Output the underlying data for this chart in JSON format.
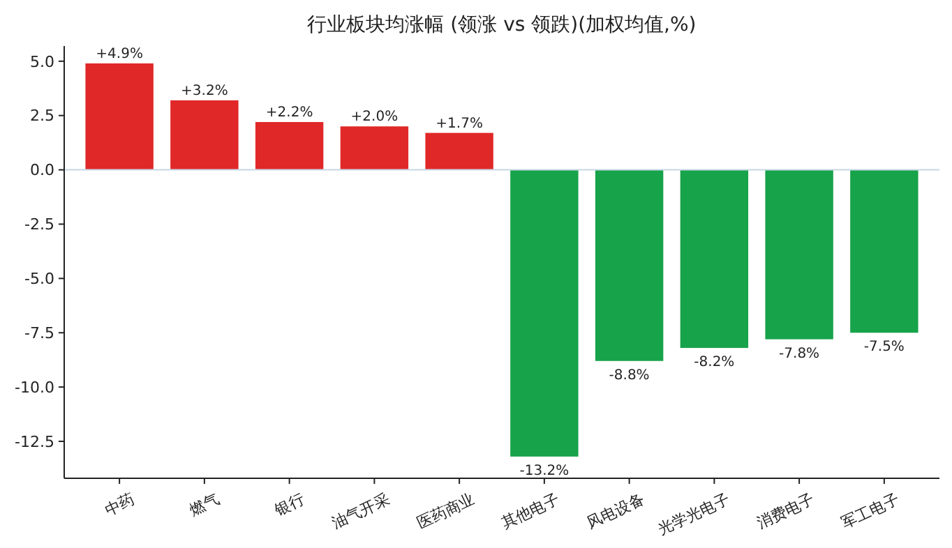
{
  "chart_data": {
    "type": "bar",
    "title": "行业板块均涨幅 (领涨 vs 领跌)(加权均值,%)",
    "categories": [
      "中药",
      "燃气",
      "银行",
      "油气开采",
      "医药商业",
      "其他电子",
      "风电设备",
      "光学光电子",
      "消费电子",
      "军工电子"
    ],
    "values": [
      4.9,
      3.2,
      2.2,
      2.0,
      1.7,
      -13.2,
      -8.8,
      -8.2,
      -7.8,
      -7.5
    ],
    "colors": [
      "#e02828",
      "#e02828",
      "#e02828",
      "#e02828",
      "#e02828",
      "#17a34a",
      "#17a34a",
      "#17a34a",
      "#17a34a",
      "#17a34a"
    ],
    "value_labels": [
      "+4.9%",
      "+3.2%",
      "+2.2%",
      "+2.0%",
      "+1.7%",
      "-13.2%",
      "-8.8%",
      "-8.2%",
      "-7.8%",
      "-7.5%"
    ],
    "ylim": [
      -14.2,
      5.7
    ],
    "yticks": [
      {
        "value": -12.5,
        "label": "-12.5"
      },
      {
        "value": -10,
        "label": "-10.0"
      },
      {
        "value": -7.5,
        "label": "-7.5"
      },
      {
        "value": -5,
        "label": "-5.0"
      },
      {
        "value": -2.5,
        "label": "-2.5"
      },
      {
        "value": 0,
        "label": "0.0"
      },
      {
        "value": 2.5,
        "label": "2.5"
      },
      {
        "value": 5,
        "label": "5.0"
      }
    ],
    "ref_lines": [
      {
        "axis": "y",
        "value": 0,
        "color": "#c8d8e6"
      }
    ],
    "grid": false
  }
}
